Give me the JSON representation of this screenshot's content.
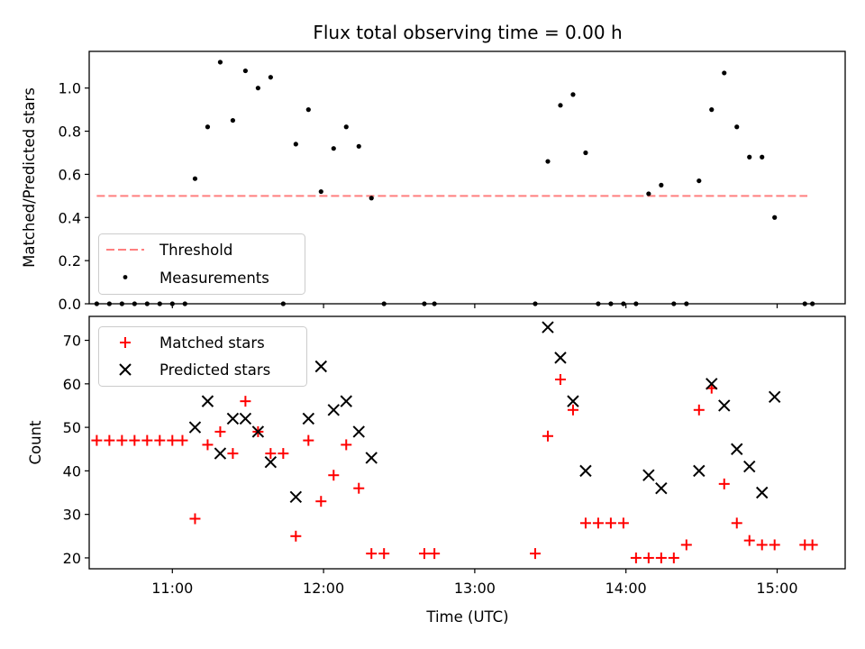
{
  "chart_data": [
    {
      "type": "scatter",
      "title": "Flux total observing time = 0.00 h",
      "xlabel": "",
      "ylabel": "Matched/Predicted stars",
      "ylim": [
        0,
        1.17
      ],
      "yticks": [
        "0.0",
        "0.2",
        "0.4",
        "0.6",
        "0.8",
        "1.0"
      ],
      "grid": false,
      "legend_position": "lower-left",
      "threshold": {
        "name": "Threshold",
        "value": 0.5,
        "x_start": "10:30",
        "x_end": "15:12",
        "color": "#ff7f7f",
        "style": "dashed"
      },
      "series": [
        {
          "name": "Measurements",
          "color": "#000000",
          "marker": "dot",
          "x": [
            "10:30",
            "10:35",
            "10:40",
            "10:45",
            "10:50",
            "10:55",
            "11:00",
            "11:05",
            "11:09",
            "11:14",
            "11:19",
            "11:24",
            "11:29",
            "11:34",
            "11:39",
            "11:44",
            "11:49",
            "11:54",
            "11:59",
            "12:04",
            "12:09",
            "12:14",
            "12:19",
            "12:24",
            "12:40",
            "12:44",
            "13:24",
            "13:29",
            "13:34",
            "13:39",
            "13:44",
            "13:49",
            "13:54",
            "13:59",
            "14:04",
            "14:09",
            "14:14",
            "14:19",
            "14:24",
            "14:29",
            "14:34",
            "14:39",
            "14:44",
            "14:49",
            "14:54",
            "14:59",
            "15:11",
            "15:14"
          ],
          "y": [
            0,
            0,
            0,
            0,
            0,
            0,
            0,
            0,
            0.58,
            0.82,
            1.12,
            0.85,
            1.08,
            1.0,
            1.05,
            0,
            0.74,
            0.9,
            0.52,
            0.72,
            0.82,
            0.73,
            0.49,
            0,
            0,
            0,
            0,
            0.66,
            0.92,
            0.97,
            0.7,
            0,
            0,
            0,
            0,
            0.51,
            0.55,
            0,
            0,
            0.57,
            0.9,
            1.07,
            0.82,
            0.68,
            0.68,
            0.4,
            0,
            0
          ]
        }
      ]
    },
    {
      "type": "scatter",
      "title": "",
      "xlabel": "Time (UTC)",
      "ylabel": "Count",
      "xlim": [
        "10:27",
        "15:27"
      ],
      "ylim": [
        17.5,
        75.5
      ],
      "xticks": [
        "11:00",
        "12:00",
        "13:00",
        "14:00",
        "15:00"
      ],
      "yticks": [
        "20",
        "30",
        "40",
        "50",
        "60",
        "70"
      ],
      "grid": false,
      "legend_position": "upper-left",
      "series": [
        {
          "name": "Matched stars",
          "color": "#ff0000",
          "marker": "plus",
          "x": [
            "10:30",
            "10:35",
            "10:40",
            "10:45",
            "10:50",
            "10:55",
            "11:00",
            "11:04",
            "11:09",
            "11:14",
            "11:19",
            "11:24",
            "11:29",
            "11:34",
            "11:39",
            "11:44",
            "11:49",
            "11:54",
            "11:59",
            "12:04",
            "12:09",
            "12:14",
            "12:19",
            "12:24",
            "12:40",
            "12:44",
            "13:24",
            "13:29",
            "13:34",
            "13:39",
            "13:44",
            "13:49",
            "13:54",
            "13:59",
            "14:04",
            "14:09",
            "14:14",
            "14:19",
            "14:24",
            "14:29",
            "14:34",
            "14:39",
            "14:44",
            "14:49",
            "14:54",
            "14:59",
            "15:11",
            "15:14"
          ],
          "y": [
            47,
            47,
            47,
            47,
            47,
            47,
            47,
            47,
            29,
            46,
            49,
            44,
            56,
            49,
            44,
            44,
            25,
            47,
            33,
            39,
            46,
            36,
            21,
            21,
            21,
            21,
            21,
            48,
            61,
            54,
            28,
            28,
            28,
            28,
            20,
            20,
            20,
            20,
            23,
            54,
            59,
            37,
            28,
            24,
            23,
            23,
            23,
            23
          ]
        },
        {
          "name": "Predicted stars",
          "color": "#000000",
          "marker": "x",
          "x": [
            "11:09",
            "11:14",
            "11:19",
            "11:24",
            "11:29",
            "11:34",
            "11:39",
            "11:49",
            "11:54",
            "11:59",
            "12:04",
            "12:09",
            "12:14",
            "12:19",
            "13:29",
            "13:34",
            "13:39",
            "13:44",
            "14:09",
            "14:14",
            "14:29",
            "14:34",
            "14:39",
            "14:44",
            "14:49",
            "14:54",
            "14:59"
          ],
          "y": [
            50,
            56,
            44,
            52,
            52,
            49,
            42,
            34,
            52,
            64,
            54,
            56,
            49,
            43,
            73,
            66,
            56,
            40,
            39,
            36,
            40,
            60,
            55,
            45,
            41,
            35,
            57
          ]
        }
      ]
    }
  ]
}
